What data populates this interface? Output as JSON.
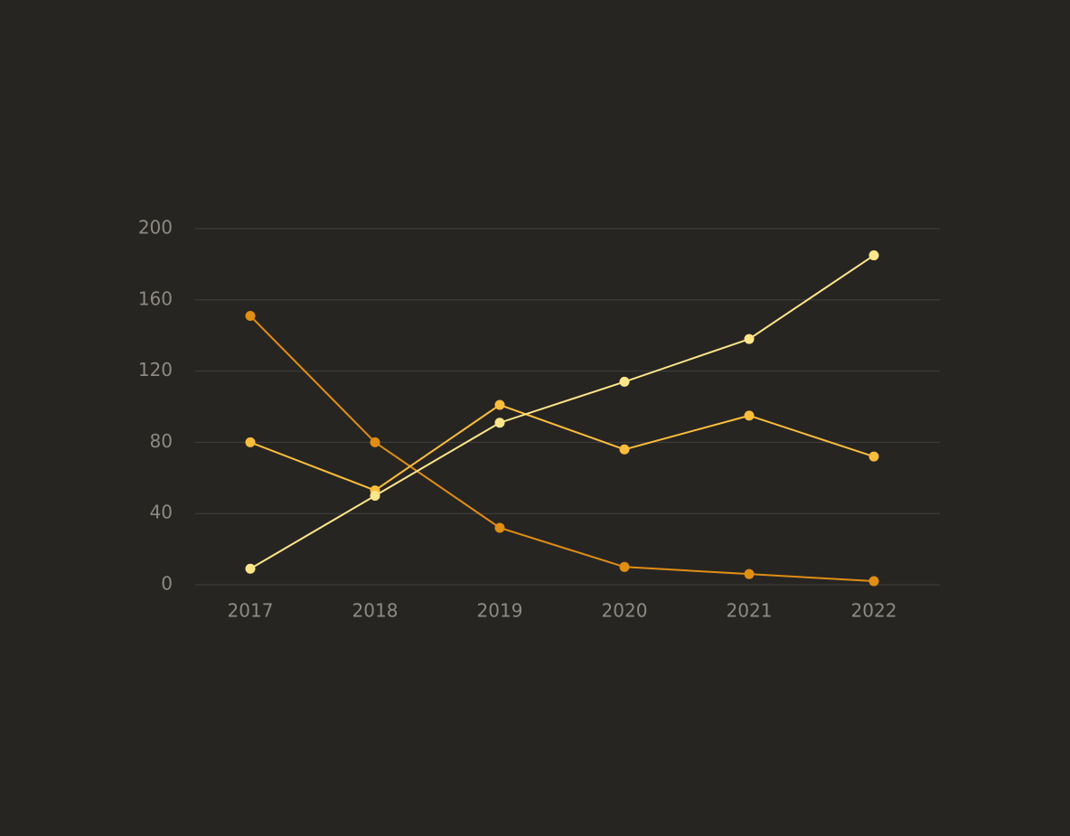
{
  "chart_data": {
    "type": "line",
    "x": [
      "2017",
      "2018",
      "2019",
      "2020",
      "2021",
      "2022"
    ],
    "ylim": [
      0,
      200
    ],
    "yticks": [
      0,
      40,
      80,
      120,
      160,
      200
    ],
    "grid": true,
    "series": [
      {
        "color": "#e08e14",
        "values": [
          151,
          80,
          32,
          10,
          6,
          2
        ]
      },
      {
        "color": "#fbbd3c",
        "values": [
          80,
          53,
          101,
          76,
          95,
          72
        ]
      },
      {
        "color": "#fde68a",
        "values": [
          9,
          50,
          91,
          114,
          138,
          185
        ]
      }
    ]
  },
  "colors": {
    "background": "#272522",
    "grid": "#43413d",
    "tick_label": "#8d8a84"
  }
}
